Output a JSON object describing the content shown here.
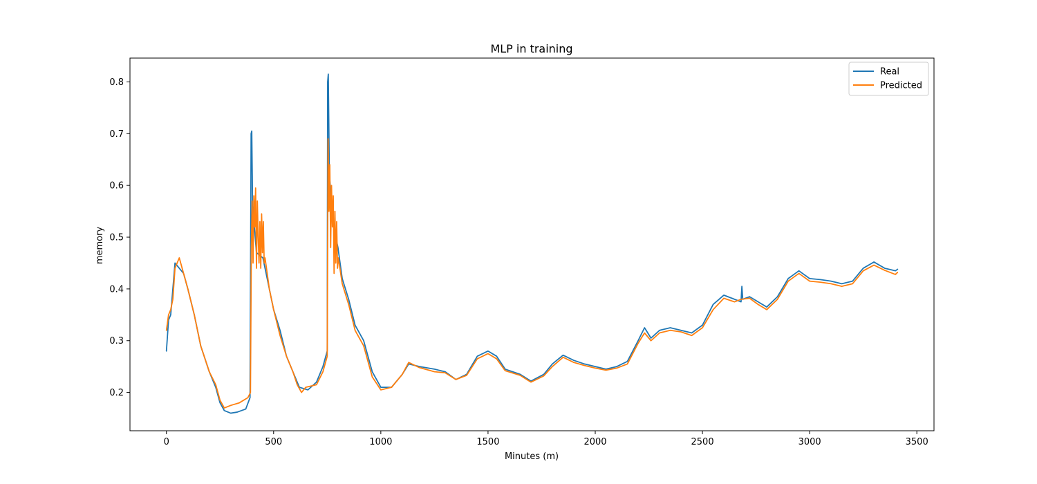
{
  "chart_data": {
    "type": "line",
    "title": "MLP in training",
    "xlabel": "Minutes (m)",
    "ylabel": "memory",
    "xlim": [
      -170,
      3580
    ],
    "ylim": [
      0.126,
      0.846
    ],
    "xticks": [
      0,
      500,
      1000,
      1500,
      2000,
      2500,
      3000,
      3500
    ],
    "yticks": [
      0.2,
      0.3,
      0.4,
      0.5,
      0.6,
      0.7,
      0.8
    ],
    "grid": false,
    "legend_position": "top-right",
    "series": [
      {
        "name": "Real",
        "color": "#1f77b4",
        "points": [
          [
            0,
            0.28
          ],
          [
            10,
            0.34
          ],
          [
            20,
            0.35
          ],
          [
            30,
            0.4
          ],
          [
            40,
            0.45
          ],
          [
            60,
            0.44
          ],
          [
            80,
            0.43
          ],
          [
            100,
            0.4
          ],
          [
            130,
            0.35
          ],
          [
            160,
            0.29
          ],
          [
            200,
            0.24
          ],
          [
            230,
            0.21
          ],
          [
            250,
            0.18
          ],
          [
            270,
            0.165
          ],
          [
            300,
            0.16
          ],
          [
            330,
            0.162
          ],
          [
            370,
            0.168
          ],
          [
            390,
            0.19
          ],
          [
            395,
            0.7
          ],
          [
            398,
            0.705
          ],
          [
            402,
            0.56
          ],
          [
            420,
            0.47
          ],
          [
            450,
            0.46
          ],
          [
            480,
            0.4
          ],
          [
            500,
            0.36
          ],
          [
            530,
            0.32
          ],
          [
            560,
            0.27
          ],
          [
            590,
            0.24
          ],
          [
            620,
            0.21
          ],
          [
            660,
            0.205
          ],
          [
            700,
            0.22
          ],
          [
            730,
            0.25
          ],
          [
            750,
            0.28
          ],
          [
            752,
            0.8
          ],
          [
            755,
            0.815
          ],
          [
            760,
            0.62
          ],
          [
            780,
            0.52
          ],
          [
            800,
            0.48
          ],
          [
            820,
            0.42
          ],
          [
            850,
            0.38
          ],
          [
            880,
            0.33
          ],
          [
            920,
            0.3
          ],
          [
            960,
            0.24
          ],
          [
            1000,
            0.21
          ],
          [
            1050,
            0.21
          ],
          [
            1100,
            0.235
          ],
          [
            1130,
            0.255
          ],
          [
            1180,
            0.25
          ],
          [
            1250,
            0.245
          ],
          [
            1300,
            0.24
          ],
          [
            1350,
            0.225
          ],
          [
            1400,
            0.235
          ],
          [
            1450,
            0.27
          ],
          [
            1500,
            0.28
          ],
          [
            1540,
            0.27
          ],
          [
            1580,
            0.245
          ],
          [
            1650,
            0.235
          ],
          [
            1700,
            0.222
          ],
          [
            1760,
            0.235
          ],
          [
            1800,
            0.255
          ],
          [
            1850,
            0.272
          ],
          [
            1900,
            0.262
          ],
          [
            1950,
            0.255
          ],
          [
            2000,
            0.25
          ],
          [
            2050,
            0.245
          ],
          [
            2100,
            0.25
          ],
          [
            2150,
            0.26
          ],
          [
            2200,
            0.3
          ],
          [
            2230,
            0.325
          ],
          [
            2260,
            0.305
          ],
          [
            2300,
            0.32
          ],
          [
            2350,
            0.325
          ],
          [
            2400,
            0.32
          ],
          [
            2450,
            0.315
          ],
          [
            2500,
            0.33
          ],
          [
            2550,
            0.37
          ],
          [
            2600,
            0.388
          ],
          [
            2650,
            0.38
          ],
          [
            2680,
            0.375
          ],
          [
            2684,
            0.405
          ],
          [
            2688,
            0.38
          ],
          [
            2720,
            0.385
          ],
          [
            2760,
            0.375
          ],
          [
            2800,
            0.365
          ],
          [
            2850,
            0.385
          ],
          [
            2900,
            0.42
          ],
          [
            2950,
            0.435
          ],
          [
            3000,
            0.42
          ],
          [
            3050,
            0.418
          ],
          [
            3100,
            0.415
          ],
          [
            3150,
            0.41
          ],
          [
            3200,
            0.415
          ],
          [
            3250,
            0.44
          ],
          [
            3300,
            0.452
          ],
          [
            3350,
            0.44
          ],
          [
            3400,
            0.435
          ],
          [
            3410,
            0.438
          ]
        ]
      },
      {
        "name": "Predicted",
        "color": "#ff7f0e",
        "points": [
          [
            0,
            0.32
          ],
          [
            10,
            0.35
          ],
          [
            20,
            0.36
          ],
          [
            30,
            0.38
          ],
          [
            40,
            0.44
          ],
          [
            50,
            0.45
          ],
          [
            60,
            0.46
          ],
          [
            80,
            0.43
          ],
          [
            100,
            0.4
          ],
          [
            130,
            0.35
          ],
          [
            160,
            0.29
          ],
          [
            200,
            0.24
          ],
          [
            230,
            0.215
          ],
          [
            250,
            0.185
          ],
          [
            270,
            0.17
          ],
          [
            300,
            0.175
          ],
          [
            340,
            0.18
          ],
          [
            380,
            0.19
          ],
          [
            392,
            0.2
          ],
          [
            396,
            0.48
          ],
          [
            400,
            0.57
          ],
          [
            404,
            0.45
          ],
          [
            408,
            0.58
          ],
          [
            412,
            0.52
          ],
          [
            416,
            0.595
          ],
          [
            420,
            0.44
          ],
          [
            424,
            0.57
          ],
          [
            428,
            0.5
          ],
          [
            432,
            0.45
          ],
          [
            436,
            0.53
          ],
          [
            440,
            0.44
          ],
          [
            444,
            0.545
          ],
          [
            448,
            0.47
          ],
          [
            452,
            0.53
          ],
          [
            456,
            0.45
          ],
          [
            460,
            0.46
          ],
          [
            480,
            0.4
          ],
          [
            500,
            0.36
          ],
          [
            530,
            0.31
          ],
          [
            560,
            0.27
          ],
          [
            590,
            0.24
          ],
          [
            610,
            0.215
          ],
          [
            630,
            0.2
          ],
          [
            650,
            0.21
          ],
          [
            700,
            0.215
          ],
          [
            730,
            0.24
          ],
          [
            750,
            0.27
          ],
          [
            754,
            0.69
          ],
          [
            758,
            0.55
          ],
          [
            762,
            0.64
          ],
          [
            766,
            0.48
          ],
          [
            770,
            0.6
          ],
          [
            774,
            0.52
          ],
          [
            778,
            0.58
          ],
          [
            782,
            0.43
          ],
          [
            786,
            0.55
          ],
          [
            790,
            0.45
          ],
          [
            794,
            0.53
          ],
          [
            798,
            0.44
          ],
          [
            802,
            0.46
          ],
          [
            820,
            0.41
          ],
          [
            850,
            0.37
          ],
          [
            880,
            0.32
          ],
          [
            920,
            0.29
          ],
          [
            960,
            0.23
          ],
          [
            1000,
            0.205
          ],
          [
            1050,
            0.21
          ],
          [
            1100,
            0.235
          ],
          [
            1130,
            0.258
          ],
          [
            1180,
            0.248
          ],
          [
            1250,
            0.24
          ],
          [
            1300,
            0.238
          ],
          [
            1350,
            0.225
          ],
          [
            1400,
            0.233
          ],
          [
            1450,
            0.265
          ],
          [
            1500,
            0.275
          ],
          [
            1540,
            0.265
          ],
          [
            1580,
            0.242
          ],
          [
            1650,
            0.233
          ],
          [
            1700,
            0.22
          ],
          [
            1760,
            0.232
          ],
          [
            1800,
            0.25
          ],
          [
            1850,
            0.268
          ],
          [
            1900,
            0.258
          ],
          [
            1950,
            0.252
          ],
          [
            2000,
            0.247
          ],
          [
            2050,
            0.243
          ],
          [
            2100,
            0.247
          ],
          [
            2150,
            0.255
          ],
          [
            2200,
            0.295
          ],
          [
            2230,
            0.315
          ],
          [
            2260,
            0.3
          ],
          [
            2300,
            0.315
          ],
          [
            2350,
            0.32
          ],
          [
            2400,
            0.317
          ],
          [
            2450,
            0.31
          ],
          [
            2500,
            0.325
          ],
          [
            2550,
            0.36
          ],
          [
            2600,
            0.382
          ],
          [
            2650,
            0.375
          ],
          [
            2680,
            0.38
          ],
          [
            2720,
            0.382
          ],
          [
            2760,
            0.37
          ],
          [
            2800,
            0.36
          ],
          [
            2850,
            0.38
          ],
          [
            2900,
            0.415
          ],
          [
            2950,
            0.43
          ],
          [
            3000,
            0.415
          ],
          [
            3050,
            0.413
          ],
          [
            3100,
            0.41
          ],
          [
            3150,
            0.405
          ],
          [
            3200,
            0.41
          ],
          [
            3250,
            0.435
          ],
          [
            3300,
            0.446
          ],
          [
            3350,
            0.436
          ],
          [
            3400,
            0.428
          ],
          [
            3410,
            0.432
          ]
        ]
      }
    ]
  }
}
